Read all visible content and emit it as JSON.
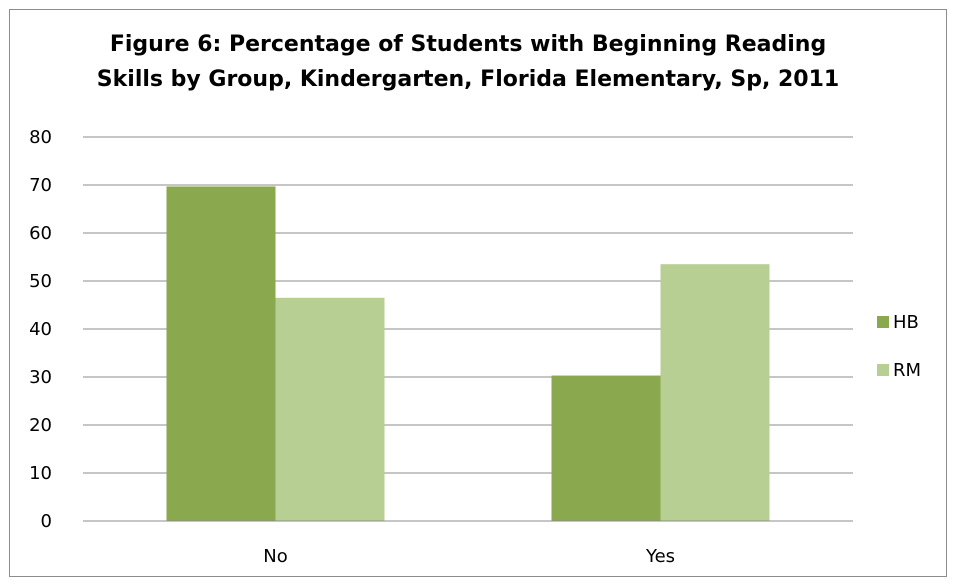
{
  "chart_data": {
    "type": "bar",
    "title_lines": [
      "Figure 6: Percentage of Students with Beginning Reading",
      "Skills by Group, Kindergarten, Florida Elementary, Sp, 2011"
    ],
    "categories": [
      "No",
      "Yes"
    ],
    "series": [
      {
        "name": "HB",
        "values": [
          69.7,
          30.3
        ],
        "color": "#8aa94f"
      },
      {
        "name": "RM",
        "values": [
          46.5,
          53.5
        ],
        "color": "#b8cf93"
      }
    ],
    "ylim": [
      0,
      80
    ],
    "yticks": [
      0,
      10,
      20,
      30,
      40,
      50,
      60,
      70,
      80
    ],
    "grid": true,
    "legend": "right",
    "gridline_color": "#8c8c8c"
  }
}
